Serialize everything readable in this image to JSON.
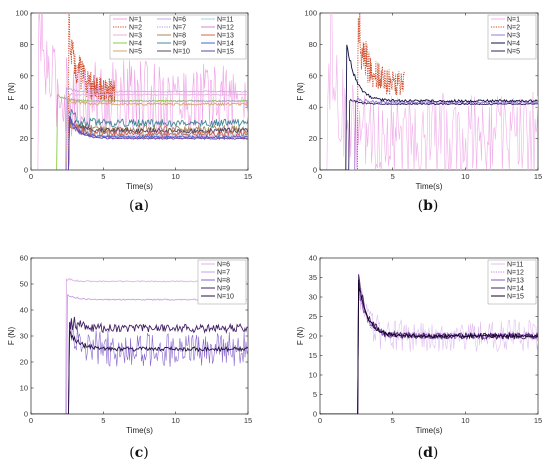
{
  "chart_data": [
    {
      "type": "line",
      "panel": "a",
      "caption_letter": "a",
      "xlabel": "Time(s)",
      "ylabel": "F (N)",
      "xlim": [
        0,
        15
      ],
      "ylim": [
        0,
        100
      ],
      "xticks": [
        0,
        5,
        10,
        15
      ],
      "yticks": [
        0,
        20,
        40,
        60,
        80,
        100
      ],
      "legend_columns": 3,
      "series": [
        {
          "name": "N=1",
          "color": "#f0a0e6",
          "style": "noisy",
          "step": 0.5,
          "settle": 45,
          "peak": 95,
          "amp": 18,
          "end": 15
        },
        {
          "name": "N=2",
          "color": "#cc4422",
          "style": "dotted",
          "step": 2.6,
          "settle": 50,
          "peak": 92,
          "amp": 20,
          "end": 5.8
        },
        {
          "name": "N=3",
          "color": "#e8b0e0",
          "style": "solid",
          "step": 2.6,
          "settle": 48,
          "peak": 48,
          "amp": 1,
          "end": 15
        },
        {
          "name": "N=4",
          "color": "#88cc44",
          "style": "solid",
          "step": 1.8,
          "settle": 44,
          "peak": 48,
          "amp": 1,
          "end": 15
        },
        {
          "name": "N=5",
          "color": "#d4a574",
          "style": "solid",
          "step": 2.5,
          "settle": 42,
          "peak": 45,
          "amp": 2,
          "end": 15
        },
        {
          "name": "N=6",
          "color": "#c8a8e8",
          "style": "solid",
          "step": 2.4,
          "settle": 50,
          "peak": 52,
          "amp": 1,
          "end": 15
        },
        {
          "name": "N=7",
          "color": "#b890e0",
          "style": "dotted",
          "step": 2.5,
          "settle": 44,
          "peak": 46,
          "amp": 1,
          "end": 15
        },
        {
          "name": "N=8",
          "color": "#aa8855",
          "style": "solid",
          "step": 2.6,
          "settle": 26,
          "peak": 32,
          "amp": 6,
          "end": 15
        },
        {
          "name": "N=9",
          "color": "#448899",
          "style": "solid",
          "step": 2.6,
          "settle": 30,
          "peak": 35,
          "amp": 6,
          "end": 15
        },
        {
          "name": "N=10",
          "color": "#554466",
          "style": "solid",
          "step": 2.6,
          "settle": 25,
          "peak": 33,
          "amp": 4,
          "end": 15
        },
        {
          "name": "N=11",
          "color": "#aaccee",
          "style": "solid",
          "step": 2.6,
          "settle": 22,
          "peak": 36,
          "amp": 3,
          "end": 15
        },
        {
          "name": "N=12",
          "color": "#cc88dd",
          "style": "solid",
          "step": 2.6,
          "settle": 21,
          "peak": 34,
          "amp": 2,
          "end": 15
        },
        {
          "name": "N=13",
          "color": "#cc6655",
          "style": "solid",
          "step": 2.6,
          "settle": 23,
          "peak": 30,
          "amp": 5,
          "end": 15
        },
        {
          "name": "N=14",
          "color": "#4466cc",
          "style": "solid",
          "step": 2.6,
          "settle": 21,
          "peak": 33,
          "amp": 2,
          "end": 15
        },
        {
          "name": "N=15",
          "color": "#6644aa",
          "style": "solid",
          "step": 2.6,
          "settle": 20,
          "peak": 35,
          "amp": 1,
          "end": 15
        }
      ]
    },
    {
      "type": "line",
      "panel": "b",
      "caption_letter": "b",
      "xlabel": "Time(s)",
      "ylabel": "F (N)",
      "xlim": [
        0,
        15
      ],
      "ylim": [
        0,
        100
      ],
      "xticks": [
        0,
        5,
        10,
        15
      ],
      "yticks": [
        0,
        20,
        40,
        60,
        80,
        100
      ],
      "legend_columns": 1,
      "series": [
        {
          "name": "N=1",
          "color": "#f0b0ea",
          "style": "noisy",
          "step": 0.5,
          "settle": 22,
          "peak": 95,
          "amp": 20,
          "end": 15
        },
        {
          "name": "N=2",
          "color": "#cc4422",
          "style": "dotted",
          "step": 2.6,
          "settle": 55,
          "peak": 92,
          "amp": 20,
          "end": 5.8
        },
        {
          "name": "N=3",
          "color": "#9a7ad0",
          "style": "solid",
          "step": 2.4,
          "settle": 43,
          "peak": 46,
          "amp": 2,
          "end": 15
        },
        {
          "name": "N=4",
          "color": "#111144",
          "style": "solid",
          "step": 1.8,
          "settle": 44,
          "peak": 84,
          "amp": 2,
          "end": 15
        },
        {
          "name": "N=5",
          "color": "#332266",
          "style": "solid",
          "step": 2.0,
          "settle": 42,
          "peak": 45,
          "amp": 1,
          "end": 15
        }
      ]
    },
    {
      "type": "line",
      "panel": "c",
      "caption_letter": "c",
      "xlabel": "Time(s)",
      "ylabel": "F (N)",
      "xlim": [
        0,
        15
      ],
      "ylim": [
        0,
        60
      ],
      "xticks": [
        0,
        5,
        10,
        15
      ],
      "yticks": [
        0,
        10,
        20,
        30,
        40,
        50,
        60
      ],
      "legend_columns": 1,
      "series": [
        {
          "name": "N=6",
          "color": "#e0b0ee",
          "style": "solid",
          "step": 2.4,
          "settle": 51,
          "peak": 52,
          "amp": 0.5,
          "end": 15
        },
        {
          "name": "N=7",
          "color": "#c8a0e8",
          "style": "solid",
          "step": 2.5,
          "settle": 44,
          "peak": 46,
          "amp": 0.5,
          "end": 15
        },
        {
          "name": "N=8",
          "color": "#8866cc",
          "style": "noisy",
          "step": 2.6,
          "settle": 25,
          "peak": 32,
          "amp": 5,
          "end": 15
        },
        {
          "name": "N=9",
          "color": "#442266",
          "style": "solid",
          "step": 2.6,
          "settle": 33,
          "peak": 36,
          "amp": 4,
          "end": 15
        },
        {
          "name": "N=10",
          "color": "#221144",
          "style": "solid",
          "step": 2.6,
          "settle": 25,
          "peak": 33,
          "amp": 2,
          "end": 15
        }
      ]
    },
    {
      "type": "line",
      "panel": "d",
      "caption_letter": "d",
      "xlabel": "Time(s)",
      "ylabel": "F (N)",
      "xlim": [
        0,
        15
      ],
      "ylim": [
        0,
        40
      ],
      "xticks": [
        0,
        5,
        10,
        15
      ],
      "yticks": [
        0,
        5,
        10,
        15,
        20,
        25,
        30,
        35,
        40
      ],
      "legend_columns": 1,
      "series": [
        {
          "name": "N=11",
          "color": "#e0c0f0",
          "style": "noisy",
          "step": 2.6,
          "settle": 20,
          "peak": 30,
          "amp": 3,
          "end": 15
        },
        {
          "name": "N=12",
          "color": "#c080e0",
          "style": "dotted",
          "step": 2.6,
          "settle": 20,
          "peak": 33,
          "amp": 2,
          "end": 15
        },
        {
          "name": "N=13",
          "color": "#8855bb",
          "style": "solid",
          "step": 2.6,
          "settle": 20,
          "peak": 34,
          "amp": 2,
          "end": 15
        },
        {
          "name": "N=14",
          "color": "#442266",
          "style": "solid",
          "step": 2.6,
          "settle": 20,
          "peak": 36,
          "amp": 2,
          "end": 15
        },
        {
          "name": "N=15",
          "color": "#110022",
          "style": "solid",
          "step": 2.6,
          "settle": 20,
          "peak": 35,
          "amp": 1,
          "end": 15
        }
      ]
    }
  ]
}
